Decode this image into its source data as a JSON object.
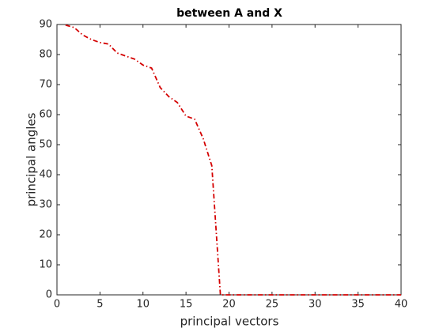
{
  "chart_data": {
    "type": "line",
    "title": "between A and X",
    "x_label": "principal vectors",
    "y_label": "principal angles",
    "x": [
      1,
      2,
      3,
      4,
      5,
      6,
      7,
      8,
      9,
      10,
      11,
      12,
      13,
      14,
      15,
      16,
      17,
      18,
      19,
      20,
      21,
      22,
      23,
      24,
      25,
      26,
      27,
      28,
      29,
      30,
      31,
      32,
      33,
      34,
      35,
      36,
      37,
      38,
      39,
      40
    ],
    "values": [
      89.8,
      89,
      86.5,
      85,
      84,
      83.5,
      80.5,
      79.5,
      78.5,
      76.5,
      75.5,
      69,
      66,
      64,
      59.5,
      58.5,
      52,
      43,
      0,
      0,
      0,
      0,
      0,
      0,
      0,
      0,
      0,
      0,
      0,
      0,
      0,
      0,
      0,
      0,
      0,
      0,
      0,
      0,
      0,
      0
    ],
    "color": "#d40000",
    "line_style": "dashdot",
    "xlim": [
      0,
      40
    ],
    "xticks": [
      0,
      5,
      10,
      15,
      20,
      25,
      30,
      35,
      40
    ],
    "ylim": [
      0,
      90
    ],
    "yticks": [
      0,
      10,
      20,
      30,
      40,
      50,
      60,
      70,
      80,
      90
    ],
    "grid": false,
    "box": true
  }
}
